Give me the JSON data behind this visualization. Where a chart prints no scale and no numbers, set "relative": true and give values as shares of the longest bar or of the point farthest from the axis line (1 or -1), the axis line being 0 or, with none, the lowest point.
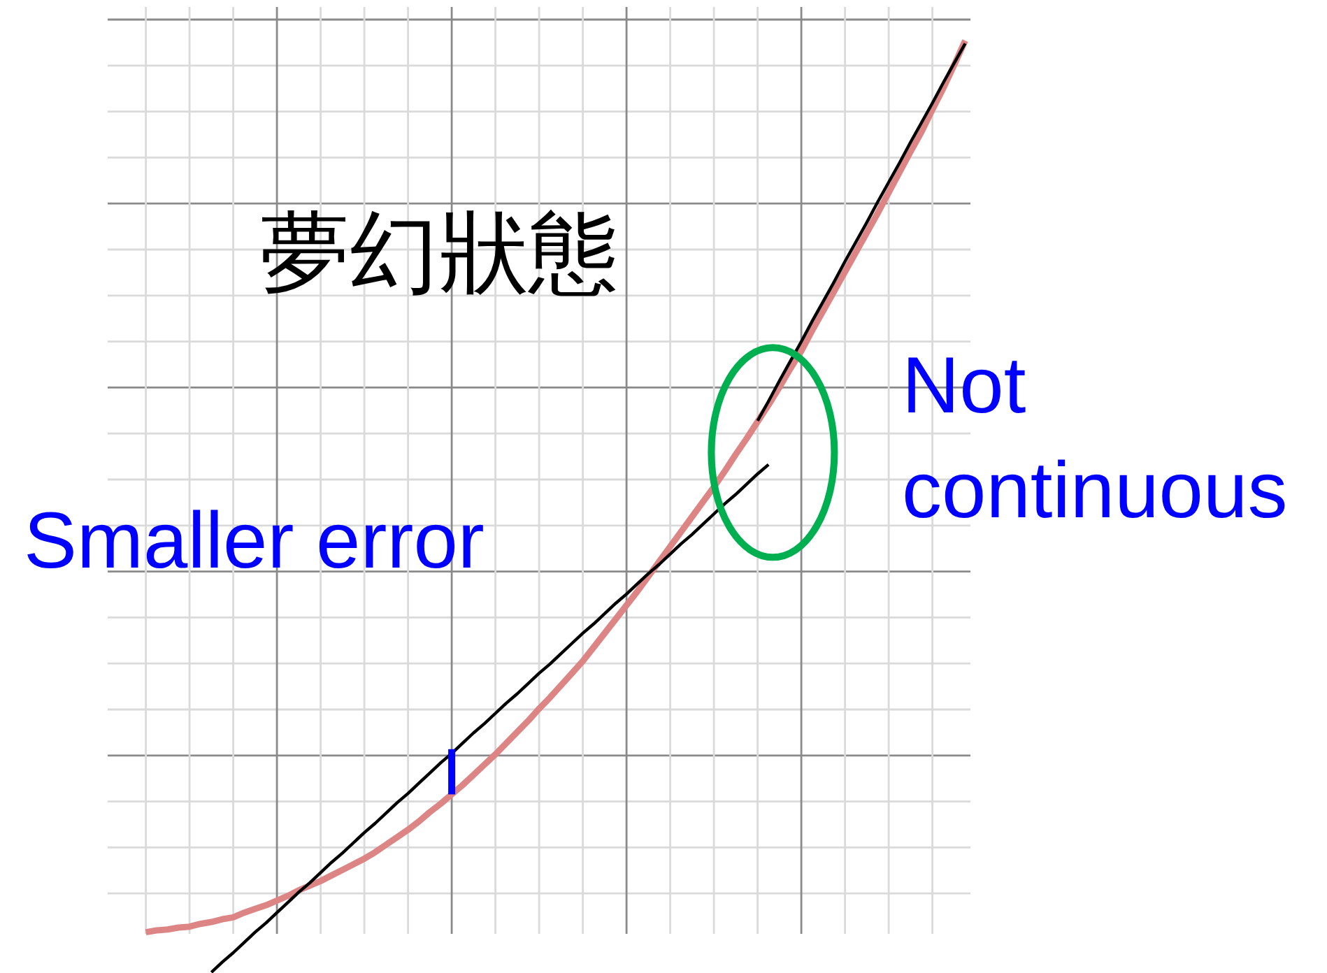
{
  "chart_data": {
    "type": "line",
    "title": "夢幻狀態",
    "annotations": [
      "Smaller error",
      "Not continuous"
    ],
    "relative": true,
    "grid": true,
    "categories": [
      null,
      null,
      null,
      null,
      null,
      null,
      null,
      null,
      null,
      null,
      null,
      null,
      null,
      null,
      null,
      null,
      null,
      null,
      null,
      null,
      null,
      null,
      null,
      null,
      null,
      null,
      null,
      null,
      null,
      null,
      null,
      null,
      null,
      null,
      null,
      null,
      null,
      null,
      null,
      null,
      null,
      null,
      null,
      null,
      null,
      null,
      null,
      null,
      null,
      null,
      null,
      null,
      null,
      null,
      null,
      null,
      null,
      null,
      null,
      null,
      null,
      null,
      null,
      null,
      null,
      null,
      null,
      null,
      null,
      null,
      null,
      null,
      null,
      null,
      null,
      null,
      null,
      null,
      null
    ],
    "series": [
      {
        "color": "#dd8585",
        "values": [
          null,
          null,
          null,
          0.043,
          0.045,
          0.046,
          0.048,
          0.049,
          0.052,
          0.054,
          0.057,
          0.059,
          0.064,
          0.068,
          0.072,
          0.077,
          0.082,
          0.088,
          0.093,
          0.098,
          0.104,
          0.11,
          0.116,
          0.122,
          0.129,
          0.137,
          0.145,
          0.153,
          0.162,
          0.172,
          0.181,
          0.191,
          0.201,
          0.212,
          0.223,
          0.234,
          0.246,
          0.258,
          0.27,
          0.283,
          0.295,
          0.308,
          0.321,
          0.334,
          0.349,
          0.364,
          0.379,
          0.394,
          0.409,
          0.425,
          0.441,
          0.457,
          0.473,
          0.489,
          0.505,
          0.521,
          0.538,
          0.556,
          0.573,
          0.591,
          0.609,
          0.628,
          0.648,
          0.667,
          0.689,
          0.71,
          0.731,
          0.752,
          0.773,
          0.794,
          0.815,
          0.837,
          0.859,
          0.881,
          0.902,
          0.926,
          0.949,
          0.974,
          1
        ]
      },
      {
        "color": "#000000",
        "values": [
          null,
          null,
          null,
          null,
          null,
          null,
          null,
          null,
          null,
          0,
          0.011,
          0.021,
          0.032,
          0.043,
          0.053,
          0.064,
          0.075,
          0.086,
          0.096,
          0.107,
          0.118,
          0.128,
          0.139,
          0.15,
          0.16,
          0.171,
          0.182,
          0.192,
          0.203,
          0.214,
          0.225,
          0.235,
          0.246,
          0.257,
          0.267,
          0.278,
          0.289,
          0.299,
          0.31,
          0.321,
          0.331,
          0.342,
          0.353,
          0.364,
          0.374,
          0.385,
          0.396,
          0.406,
          0.417,
          0.428,
          0.438,
          0.449,
          0.46,
          0.47,
          0.481,
          0.492,
          0.503,
          0.513,
          0.524,
          0.535,
          0.545,
          null,
          null,
          null,
          null,
          null,
          null,
          null,
          null,
          null,
          null,
          null,
          null,
          null,
          null,
          null,
          null,
          null,
          null
        ]
      },
      {
        "color": "#000000",
        "values": [
          null,
          null,
          null,
          null,
          null,
          null,
          null,
          null,
          null,
          null,
          null,
          null,
          null,
          null,
          null,
          null,
          null,
          null,
          null,
          null,
          null,
          null,
          null,
          null,
          null,
          null,
          null,
          null,
          null,
          null,
          null,
          null,
          null,
          null,
          null,
          null,
          null,
          null,
          null,
          null,
          null,
          null,
          null,
          null,
          null,
          null,
          null,
          null,
          null,
          null,
          null,
          null,
          null,
          null,
          null,
          null,
          null,
          null,
          null,
          0.592,
          0.613,
          0.635,
          0.656,
          0.677,
          0.699,
          0.72,
          0.741,
          0.763,
          0.784,
          0.805,
          0.827,
          0.848,
          0.869,
          0.891,
          0.912,
          0.933,
          0.955,
          0.976,
          0.997
        ]
      }
    ]
  }
}
